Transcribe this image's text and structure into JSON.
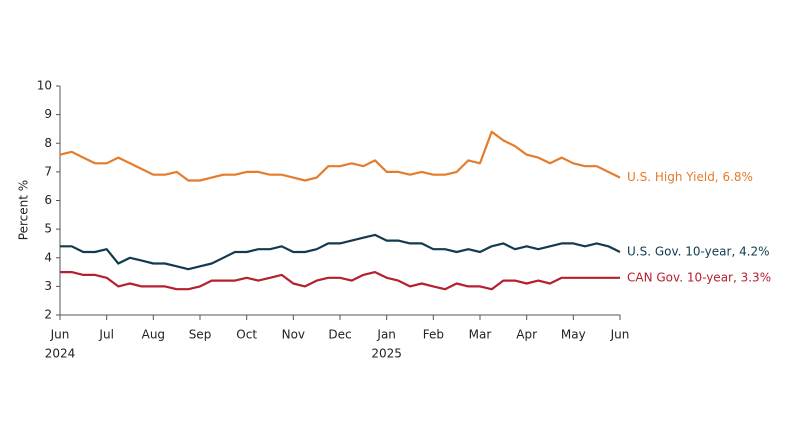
{
  "chart_data": {
    "type": "line",
    "y_label": "Percent %",
    "x": [
      0,
      0.25,
      0.5,
      0.75,
      1,
      1.25,
      1.5,
      1.75,
      2,
      2.25,
      2.5,
      2.75,
      3,
      3.25,
      3.5,
      3.75,
      4,
      4.25,
      4.5,
      4.75,
      5,
      5.25,
      5.5,
      5.75,
      6,
      6.25,
      6.5,
      6.75,
      7,
      7.25,
      7.5,
      7.75,
      8,
      8.25,
      8.5,
      8.75,
      9,
      9.25,
      9.5,
      9.75,
      10,
      10.25,
      10.5,
      10.75,
      11,
      11.25,
      11.5,
      11.75,
      12
    ],
    "series": [
      {
        "name": "U.S. High Yield, 6.8%",
        "color": "#e57c2c",
        "values": [
          7.6,
          7.7,
          7.5,
          7.3,
          7.3,
          7.5,
          7.3,
          7.1,
          6.9,
          6.9,
          7.0,
          6.7,
          6.7,
          6.8,
          6.9,
          6.9,
          7.0,
          7.0,
          6.9,
          6.9,
          6.8,
          6.7,
          6.8,
          7.2,
          7.2,
          7.3,
          7.2,
          7.4,
          7.0,
          7.0,
          6.9,
          7.0,
          6.9,
          6.9,
          7.0,
          7.4,
          7.3,
          8.4,
          8.1,
          7.9,
          7.6,
          7.5,
          7.3,
          7.5,
          7.3,
          7.2,
          7.2,
          7.0,
          6.8
        ]
      },
      {
        "name": "U.S. Gov. 10-year, 4.2%",
        "color": "#123b4f",
        "values": [
          4.4,
          4.4,
          4.2,
          4.2,
          4.3,
          3.8,
          4.0,
          3.9,
          3.8,
          3.8,
          3.7,
          3.6,
          3.7,
          3.8,
          4.0,
          4.2,
          4.2,
          4.3,
          4.3,
          4.4,
          4.2,
          4.2,
          4.3,
          4.5,
          4.5,
          4.6,
          4.7,
          4.8,
          4.6,
          4.6,
          4.5,
          4.5,
          4.3,
          4.3,
          4.2,
          4.3,
          4.2,
          4.4,
          4.5,
          4.3,
          4.4,
          4.3,
          4.4,
          4.5,
          4.5,
          4.4,
          4.5,
          4.4,
          4.2
        ]
      },
      {
        "name": "CAN Gov. 10-year, 3.3%",
        "color": "#b5202e",
        "values": [
          3.5,
          3.5,
          3.4,
          3.4,
          3.3,
          3.0,
          3.1,
          3.0,
          3.0,
          3.0,
          2.9,
          2.9,
          3.0,
          3.2,
          3.2,
          3.2,
          3.3,
          3.2,
          3.3,
          3.4,
          3.1,
          3.0,
          3.2,
          3.3,
          3.3,
          3.2,
          3.4,
          3.5,
          3.3,
          3.2,
          3.0,
          3.1,
          3.0,
          2.9,
          3.1,
          3.0,
          3.0,
          2.9,
          3.2,
          3.2,
          3.1,
          3.2,
          3.1,
          3.3,
          3.3,
          3.3,
          3.3,
          3.3,
          3.3
        ]
      }
    ],
    "xlim": [
      0,
      12
    ],
    "xticks": [
      {
        "value": 0,
        "label": "Jun"
      },
      {
        "value": 1,
        "label": "Jul"
      },
      {
        "value": 2,
        "label": "Aug"
      },
      {
        "value": 3,
        "label": "Sep"
      },
      {
        "value": 4,
        "label": "Oct"
      },
      {
        "value": 5,
        "label": "Nov"
      },
      {
        "value": 6,
        "label": "Dec"
      },
      {
        "value": 7,
        "label": "Jan"
      },
      {
        "value": 8,
        "label": "Feb"
      },
      {
        "value": 9,
        "label": "Mar"
      },
      {
        "value": 10,
        "label": "Apr"
      },
      {
        "value": 11,
        "label": "May"
      },
      {
        "value": 12,
        "label": "Jun"
      }
    ],
    "year_labels": [
      {
        "value": 0,
        "label": "2024"
      },
      {
        "value": 7,
        "label": "2025"
      }
    ],
    "ylim": [
      2,
      10
    ],
    "yticks": [
      2,
      3,
      4,
      5,
      6,
      7,
      8,
      9,
      10
    ]
  }
}
